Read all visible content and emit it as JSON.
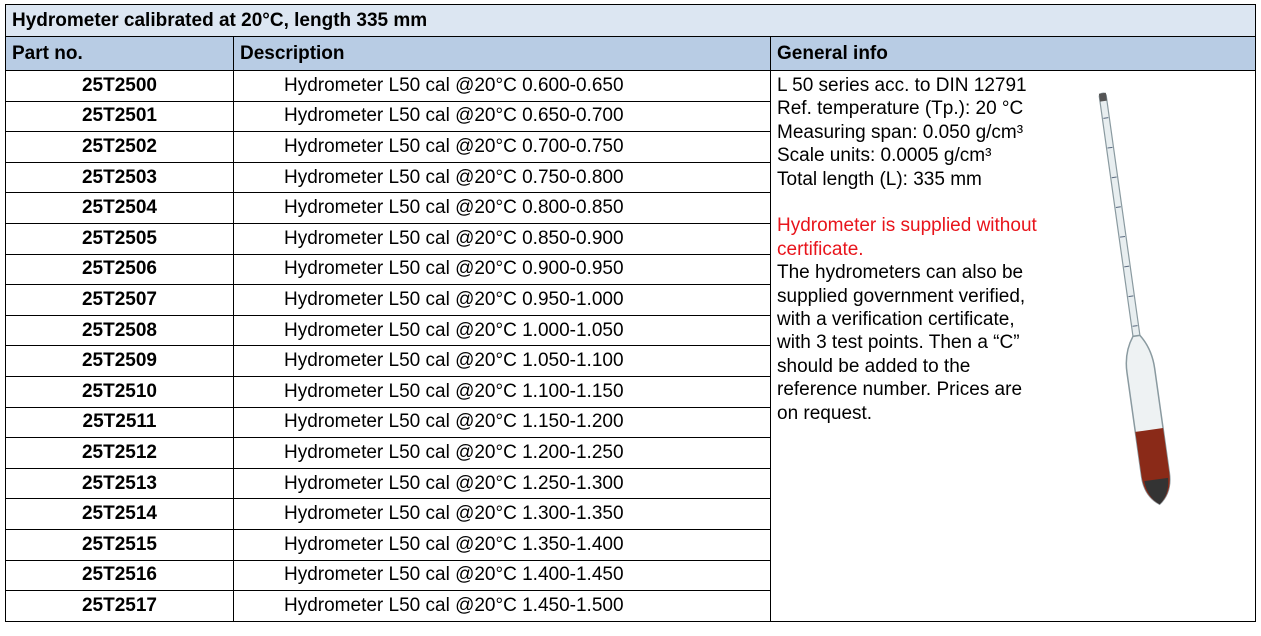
{
  "header": {
    "title": "Hydrometer calibrated at 20°C, length 335 mm"
  },
  "table": {
    "columns": [
      "Part no.",
      "Description",
      "General info"
    ],
    "rows": [
      [
        "25T2500",
        "Hydrometer L50 cal @20°C 0.600-0.650"
      ],
      [
        "25T2501",
        "Hydrometer L50 cal @20°C 0.650-0.700"
      ],
      [
        "25T2502",
        "Hydrometer L50 cal @20°C 0.700-0.750"
      ],
      [
        "25T2503",
        "Hydrometer L50 cal @20°C 0.750-0.800"
      ],
      [
        "25T2504",
        "Hydrometer L50 cal @20°C 0.800-0.850"
      ],
      [
        "25T2505",
        "Hydrometer L50 cal @20°C 0.850-0.900"
      ],
      [
        "25T2506",
        "Hydrometer L50 cal @20°C 0.900-0.950"
      ],
      [
        "25T2507",
        "Hydrometer L50 cal @20°C 0.950-1.000"
      ],
      [
        "25T2508",
        "Hydrometer L50 cal @20°C 1.000-1.050"
      ],
      [
        "25T2509",
        "Hydrometer L50 cal @20°C 1.050-1.100"
      ],
      [
        "25T2510",
        "Hydrometer L50 cal @20°C 1.100-1.150"
      ],
      [
        "25T2511",
        "Hydrometer L50 cal @20°C 1.150-1.200"
      ],
      [
        "25T2512",
        "Hydrometer L50 cal @20°C 1.200-1.250"
      ],
      [
        "25T2513",
        "Hydrometer L50 cal @20°C 1.250-1.300"
      ],
      [
        "25T2514",
        "Hydrometer L50 cal @20°C 1.300-1.350"
      ],
      [
        "25T2515",
        "Hydrometer L50 cal @20°C 1.350-1.400"
      ],
      [
        "25T2516",
        "Hydrometer L50 cal @20°C 1.400-1.450"
      ],
      [
        "25T2517",
        "Hydrometer L50 cal @20°C 1.450-1.500"
      ]
    ]
  },
  "info": {
    "specs": [
      "L 50 series acc. to DIN 12791",
      "Ref. temperature (Tp.): 20 °C",
      "Measuring span: 0.050 g/cm³",
      "Scale units: 0.0005 g/cm³",
      "Total length (L): 335 mm"
    ],
    "warning": [
      "Hydrometer is supplied without",
      "certificate."
    ],
    "note": [
      "The hydrometers can also be",
      "supplied government verified,",
      "with a verification certificate,",
      "with 3 test points. Then a “C”",
      "should be added to the",
      "reference number. Prices are",
      "on request."
    ]
  }
}
